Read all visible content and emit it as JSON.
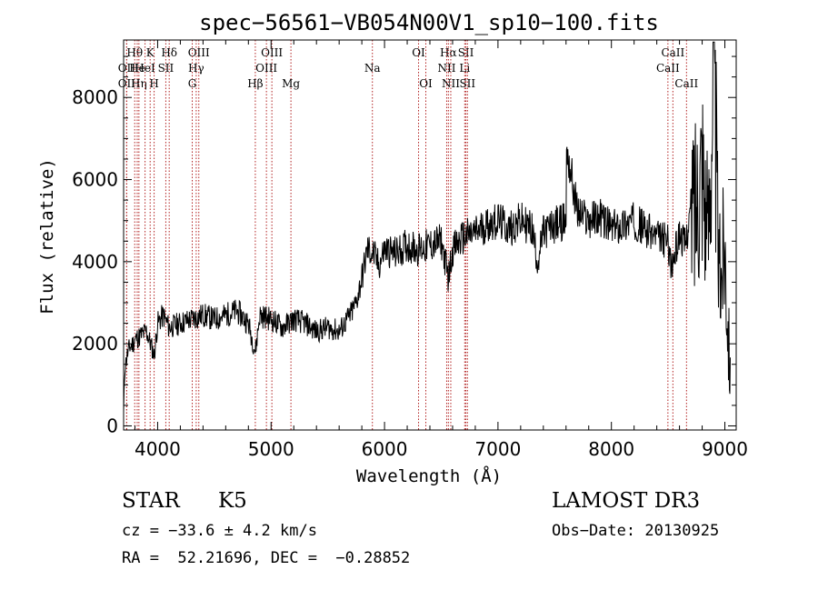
{
  "chart_data": {
    "type": "line",
    "title": "spec−56561−VB054N00V1_sp10−100.fits",
    "xlabel": "Wavelength (Å)",
    "ylabel": "Flux (relative)",
    "xlim": [
      3700,
      9100
    ],
    "ylim": [
      -100,
      9400
    ],
    "xticks": [
      4000,
      5000,
      6000,
      7000,
      8000,
      9000
    ],
    "yticks": [
      0,
      2000,
      4000,
      6000,
      8000
    ],
    "lines": [
      {
        "label": "Hθ",
        "wavelength": 3798,
        "row": 1
      },
      {
        "label": "OII",
        "wavelength": 3727,
        "row": 2
      },
      {
        "label": "OII",
        "wavelength": 3727,
        "row": 3
      },
      {
        "label": "He",
        "wavelength": 3820,
        "row": 2
      },
      {
        "label": "Hη",
        "wavelength": 3835,
        "row": 3
      },
      {
        "label": "K",
        "wavelength": 3934,
        "row": 1
      },
      {
        "label": "HeI",
        "wavelength": 3889,
        "row": 2
      },
      {
        "label": "H",
        "wavelength": 3969,
        "row": 3
      },
      {
        "label": "SII",
        "wavelength": 4072,
        "row": 2
      },
      {
        "label": "Hδ",
        "wavelength": 4102,
        "row": 1
      },
      {
        "label": "OIII",
        "wavelength": 4363,
        "row": 1
      },
      {
        "label": "Hγ",
        "wavelength": 4340,
        "row": 2
      },
      {
        "label": "G",
        "wavelength": 4305,
        "row": 3
      },
      {
        "label": "OIII",
        "wavelength": 5007,
        "row": 1
      },
      {
        "label": "OIII",
        "wavelength": 4959,
        "row": 2
      },
      {
        "label": "Hβ",
        "wavelength": 4861,
        "row": 3
      },
      {
        "label": "Mg",
        "wavelength": 5175,
        "row": 3
      },
      {
        "label": "Na",
        "wavelength": 5893,
        "row": 2
      },
      {
        "label": "OI",
        "wavelength": 6300,
        "row": 1
      },
      {
        "label": "OI",
        "wavelength": 6364,
        "row": 3
      },
      {
        "label": "Hα",
        "wavelength": 6563,
        "row": 1
      },
      {
        "label": "SII",
        "wavelength": 6717,
        "row": 1
      },
      {
        "label": "NII",
        "wavelength": 6548,
        "row": 2
      },
      {
        "label": "Li",
        "wavelength": 6707,
        "row": 2
      },
      {
        "label": "NII",
        "wavelength": 6584,
        "row": 3
      },
      {
        "label": "SII",
        "wavelength": 6731,
        "row": 3
      },
      {
        "label": "CaII",
        "wavelength": 8542,
        "row": 1
      },
      {
        "label": "CaII",
        "wavelength": 8498,
        "row": 2
      },
      {
        "label": "CaII",
        "wavelength": 8662,
        "row": 3
      }
    ],
    "spectrum_outline": {
      "x": [
        3700,
        3710,
        3730,
        3750,
        3780,
        3800,
        3850,
        3900,
        3950,
        3970,
        4000,
        4050,
        4100,
        4200,
        4300,
        4400,
        4500,
        4600,
        4700,
        4800,
        4861,
        4900,
        5000,
        5100,
        5200,
        5300,
        5400,
        5500,
        5600,
        5700,
        5750,
        5800,
        5850,
        5900,
        5950,
        6000,
        6100,
        6200,
        6300,
        6400,
        6500,
        6563,
        6600,
        6700,
        6800,
        6900,
        7000,
        7100,
        7200,
        7300,
        7350,
        7400,
        7500,
        7600,
        7605,
        7700,
        7800,
        7900,
        8000,
        8100,
        8200,
        8300,
        8400,
        8500,
        8530,
        8600,
        8650,
        8700,
        8750,
        8800,
        8850,
        8900,
        8950,
        9000,
        9050
      ],
      "y": [
        300,
        1400,
        1700,
        1900,
        2000,
        2100,
        2200,
        2300,
        1900,
        1700,
        2500,
        2700,
        2400,
        2500,
        2600,
        2700,
        2600,
        2700,
        2800,
        2500,
        1800,
        2700,
        2600,
        2400,
        2600,
        2500,
        2300,
        2400,
        2300,
        2700,
        3000,
        3600,
        4300,
        4200,
        3900,
        4300,
        4200,
        4400,
        4300,
        4400,
        4500,
        3600,
        4300,
        4600,
        4700,
        4900,
        5000,
        4800,
        5000,
        4800,
        4000,
        4700,
        4900,
        5000,
        6800,
        5200,
        5000,
        5100,
        4800,
        4900,
        5000,
        4800,
        4600,
        4500,
        3800,
        4700,
        4400,
        5300,
        5600,
        6800,
        4500,
        8900,
        3500,
        4600,
        1000
      ]
    }
  },
  "info": {
    "object_class": "STAR",
    "subclass": "K5",
    "survey": "LAMOST DR3",
    "velocity": "cz = −33.6 ± 4.2 km/s",
    "obs_date": "Obs−Date: 20130925",
    "coords": "RA =  52.21696, DEC =  −0.28852"
  }
}
